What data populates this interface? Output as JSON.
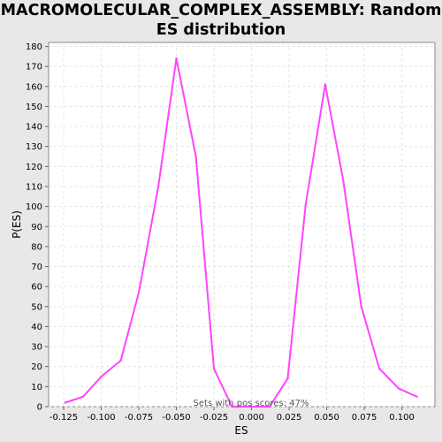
{
  "chart_data": {
    "type": "line",
    "title": "MACROMOLECULAR_COMPLEX_ASSEMBLY: Random ES distribution",
    "xlabel": "ES",
    "ylabel": "P(ES)",
    "annotation": "Sets with pos scores: 47%",
    "xlim": [
      -0.135,
      0.122
    ],
    "ylim": [
      0,
      182
    ],
    "x_ticks": [
      -0.125,
      -0.1,
      -0.075,
      -0.05,
      -0.025,
      0.0,
      0.025,
      0.05,
      0.075,
      0.1
    ],
    "x_tick_labels": [
      "-0.125",
      "-0.100",
      "-0.075",
      "-0.050",
      "-0.025",
      "0.000",
      "0.025",
      "0.050",
      "0.075",
      "0.100"
    ],
    "y_ticks": [
      0,
      10,
      20,
      30,
      40,
      50,
      60,
      70,
      80,
      90,
      100,
      110,
      120,
      130,
      140,
      150,
      160,
      170,
      180
    ],
    "y_tick_labels": [
      "0",
      "10",
      "20",
      "30",
      "40",
      "50",
      "60",
      "70",
      "80",
      "90",
      "100",
      "110",
      "120",
      "130",
      "140",
      "150",
      "160",
      "170",
      "180"
    ],
    "grid": true,
    "series_color": "#ff44ff",
    "series": [
      {
        "x": [
          -0.124,
          -0.112,
          -0.1,
          -0.087,
          -0.075,
          -0.062,
          -0.05,
          -0.037,
          -0.025,
          -0.013,
          0.0,
          0.012,
          0.024,
          0.036,
          0.049,
          0.061,
          0.073,
          0.085,
          0.098,
          0.11
        ],
        "values": [
          2,
          5,
          15,
          23,
          57,
          110,
          174,
          125,
          19,
          0,
          0,
          0,
          14,
          101,
          161,
          113,
          50,
          19,
          9,
          5
        ]
      }
    ]
  }
}
